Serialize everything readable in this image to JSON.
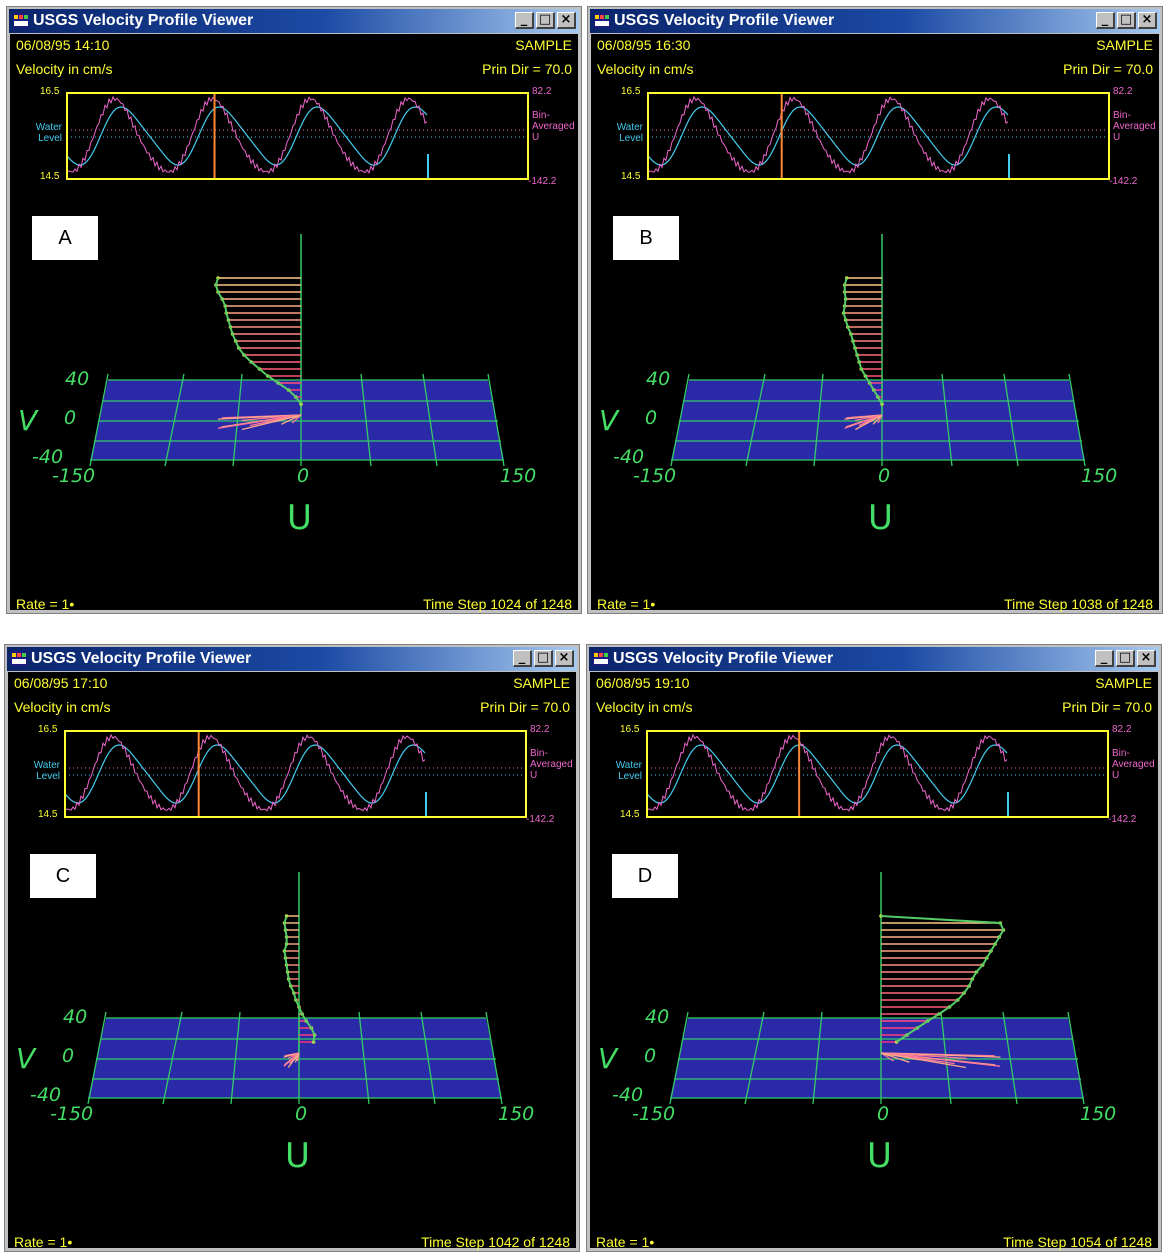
{
  "windows": [
    {
      "title": "USGS Velocity Profile Viewer",
      "buttons": {
        "minimize": "_",
        "maximize": "□",
        "close": "×"
      },
      "datetime": "06/08/95  14:10",
      "sample": "SAMPLE",
      "velocity_units": "Velocity  in  cm/s",
      "prin_dir": "Prin  Dir  =    70.0",
      "ts_left_max": "16.5",
      "ts_left_min": "14.5",
      "ts_water_level": "Water\nLevel",
      "ts_right_max": "82.2",
      "ts_right_label": "Bin-\nAveraged\nU",
      "ts_right_min": "-142.2",
      "axis_v_ticks": [
        "40",
        "0",
        "-40"
      ],
      "axis_v_label": "V",
      "axis_u_ticks": [
        "-150",
        "0",
        "150"
      ],
      "axis_u_label": "U",
      "rate": "Rate  =  1•",
      "time_step": "Time  Step  1024  of  1248",
      "panel_label": "A",
      "profile_u": [
        -80,
        -82,
        -80,
        -76,
        -73,
        -72,
        -70,
        -68,
        -66,
        -63,
        -60,
        -55,
        -48,
        -40,
        -32,
        -22,
        -12,
        -5,
        0
      ],
      "marker": 0.32
    },
    {
      "title": "USGS Velocity Profile Viewer",
      "buttons": {
        "minimize": "_",
        "maximize": "□",
        "close": "×"
      },
      "datetime": "06/08/95  16:30",
      "sample": "SAMPLE",
      "velocity_units": "Velocity  in  cm/s",
      "prin_dir": "Prin  Dir  =    70.0",
      "ts_left_max": "16.5",
      "ts_left_min": "14.5",
      "ts_water_level": "Water\nLevel",
      "ts_right_max": "82.2",
      "ts_right_label": "Bin-\nAveraged\nU",
      "ts_right_min": "-142.2",
      "axis_v_ticks": [
        "40",
        "0",
        "-40"
      ],
      "axis_v_label": "V",
      "axis_u_ticks": [
        "-150",
        "0",
        "150"
      ],
      "axis_u_label": "U",
      "rate": "Rate  =  1•",
      "time_step": "Time  Step  1038  of  1248",
      "panel_label": "B",
      "profile_u": [
        -34,
        -36,
        -36,
        -35,
        -36,
        -37,
        -35,
        -33,
        -30,
        -28,
        -26,
        -24,
        -22,
        -20,
        -16,
        -12,
        -8,
        -4,
        0
      ],
      "marker": 0.29
    },
    {
      "title": "USGS Velocity Profile Viewer",
      "buttons": {
        "minimize": "_",
        "maximize": "□",
        "close": "×"
      },
      "datetime": "06/08/95  17:10",
      "sample": "SAMPLE",
      "velocity_units": "Velocity  in  cm/s",
      "prin_dir": "Prin  Dir  =    70.0",
      "ts_left_max": "16.5",
      "ts_left_min": "14.5",
      "ts_water_level": "Water\nLevel",
      "ts_right_max": "82.2",
      "ts_right_label": "Bin-\nAveraged\nU",
      "ts_right_min": "-142.2",
      "axis_v_ticks": [
        "40",
        "0",
        "-40"
      ],
      "axis_v_label": "V",
      "axis_u_ticks": [
        "-150",
        "0",
        "150"
      ],
      "axis_u_label": "U",
      "rate": "Rate  =  1•",
      "time_step": "Time  Step  1042  of  1248",
      "panel_label": "C",
      "profile_u": [
        -12,
        -14,
        -13,
        -12,
        -12,
        -14,
        -13,
        -12,
        -11,
        -10,
        -8,
        -5,
        -3,
        0,
        3,
        7,
        12,
        15,
        14
      ],
      "marker": 0.29
    },
    {
      "title": "USGS Velocity Profile Viewer",
      "buttons": {
        "minimize": "_",
        "maximize": "□",
        "close": "×"
      },
      "datetime": "06/08/95  19:10",
      "sample": "SAMPLE",
      "velocity_units": "Velocity  in  cm/s",
      "prin_dir": "Prin  Dir  =    70.0",
      "ts_left_max": "16.5",
      "ts_left_min": "14.5",
      "ts_water_level": "Water\nLevel",
      "ts_right_max": "82.2",
      "ts_right_label": "Bin-\nAveraged\nU",
      "ts_right_min": "-142.2",
      "axis_v_ticks": [
        "40",
        "0",
        "-40"
      ],
      "axis_v_label": "V",
      "axis_u_ticks": [
        "-150",
        "0",
        "150"
      ],
      "axis_u_label": "U",
      "rate": "Rate  =  1•",
      "time_step": "Time  Step  1054  of  1248",
      "panel_label": "D",
      "profile_u": [
        0,
        115,
        118,
        114,
        110,
        106,
        102,
        98,
        92,
        88,
        85,
        80,
        74,
        66,
        56,
        45,
        35,
        25,
        15
      ],
      "marker": 0.33
    }
  ]
}
